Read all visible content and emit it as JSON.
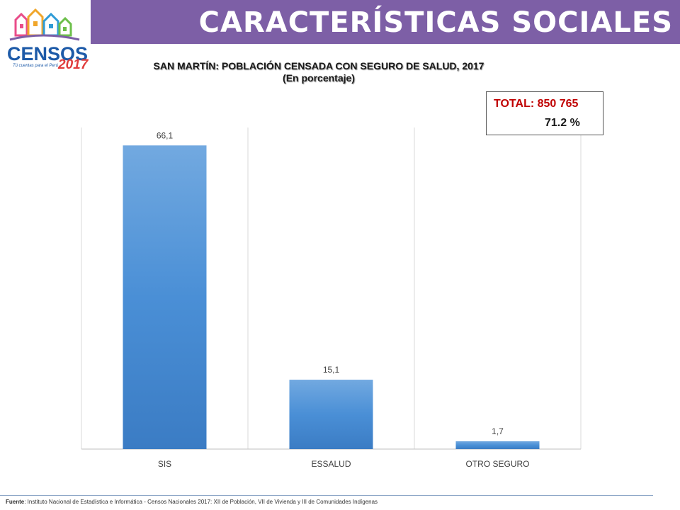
{
  "header": {
    "title": "CARACTERÍSTICAS SOCIALES",
    "band_color": "#7d5fa6"
  },
  "logo": {
    "text": "CENSOS",
    "year": "2017",
    "tagline": "Tú cuentas para el Perú"
  },
  "total_box": {
    "line1": "TOTAL: 850 765",
    "line2": "71.2 %"
  },
  "footer": {
    "source_label": "Fuente",
    "source_text": ": Instituto Nacional de Estadística e Informática - Censos Nacionales 2017: XII de Población, VII de Vivienda y III de Comunidades Indígenas"
  },
  "chart_data": {
    "type": "bar",
    "title": "SAN MARTÍN: POBLACIÓN CENSADA CON SEGURO DE SALUD, 2017",
    "subtitle": "(En porcentaje)",
    "categories": [
      "SIS",
      "ESSALUD",
      "OTRO SEGURO"
    ],
    "values": [
      66.1,
      15.1,
      1.7
    ],
    "data_labels": [
      "66,1",
      "15,1",
      "1,7"
    ],
    "ylim": [
      0,
      70
    ],
    "grid": "vertical category separators",
    "bar_color": "#4a8fd6"
  }
}
